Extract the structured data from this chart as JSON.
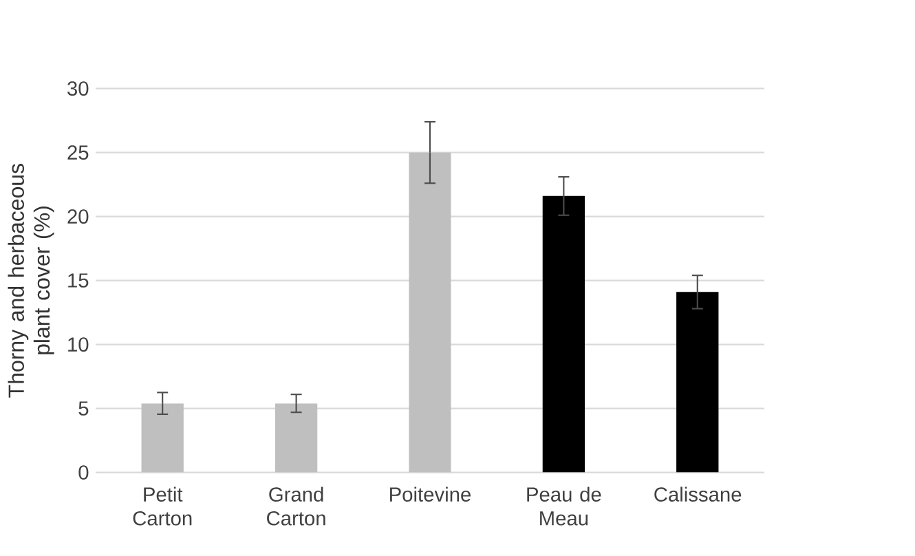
{
  "chart_data": {
    "type": "bar",
    "ylabel": "Thorny and herbaceous plant cover (%)",
    "categories": [
      "Petit Carton",
      "Grand Carton",
      "Poitevine",
      "Peau de Meau",
      "Calissane"
    ],
    "values": [
      5.4,
      5.4,
      25.0,
      21.6,
      14.1
    ],
    "errors": [
      0.85,
      0.7,
      2.4,
      1.5,
      1.3
    ],
    "colors": [
      "#bfbfbf",
      "#bfbfbf",
      "#bfbfbf",
      "#000000",
      "#000000"
    ],
    "ylim": [
      0,
      30
    ],
    "yticks": [
      0,
      5,
      10,
      15,
      20,
      25,
      30
    ],
    "grid": "y"
  }
}
